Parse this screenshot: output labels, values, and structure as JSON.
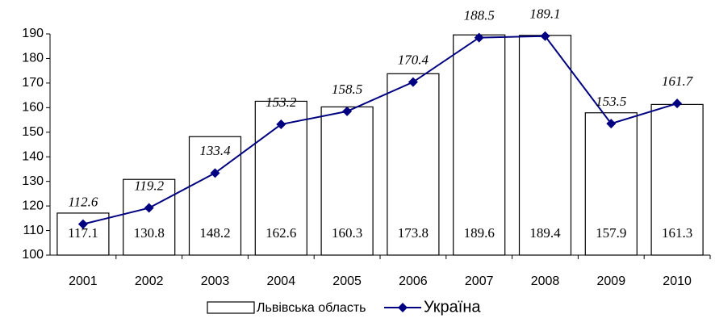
{
  "chart_data": {
    "type": "bar",
    "categories": [
      "2001",
      "2002",
      "2003",
      "2004",
      "2005",
      "2006",
      "2007",
      "2008",
      "2009",
      "2010"
    ],
    "series": [
      {
        "name": "Львівська область",
        "type": "bar",
        "color": "#ffffff",
        "values": [
          117.1,
          130.8,
          148.2,
          162.6,
          160.3,
          173.8,
          189.6,
          189.4,
          157.9,
          161.3
        ]
      },
      {
        "name": "Україна",
        "type": "line",
        "color": "#000080",
        "values": [
          112.6,
          119.2,
          133.4,
          153.2,
          158.5,
          170.4,
          188.5,
          189.1,
          153.5,
          161.7
        ]
      }
    ],
    "ylim": [
      100,
      190
    ],
    "yticks": [
      100,
      110,
      120,
      130,
      140,
      150,
      160,
      170,
      180,
      190
    ]
  }
}
